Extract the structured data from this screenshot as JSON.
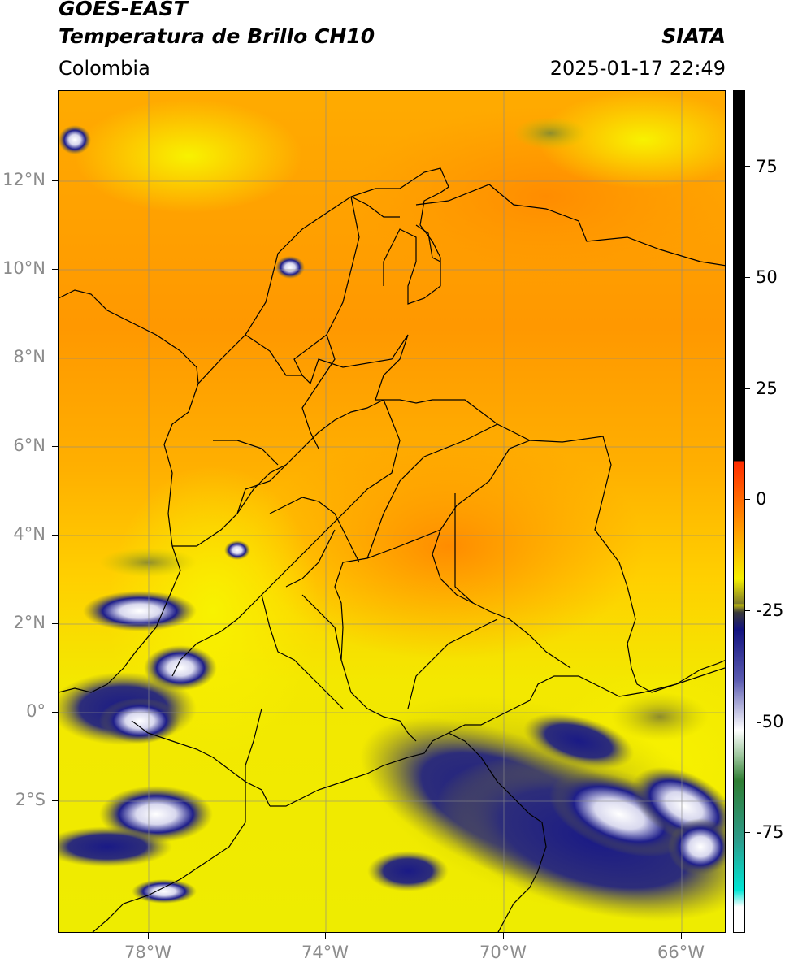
{
  "header": {
    "title_line1": "GOES-EAST",
    "title_line2": "Temperatura de Brillo CH10",
    "organization": "SIATA",
    "region": "Colombia",
    "timestamp": "2025-01-17 22:49"
  },
  "map": {
    "lat_labels": [
      "12°N",
      "10°N",
      "8°N",
      "6°N",
      "4°N",
      "2°N",
      "0°",
      "2°S"
    ],
    "lon_labels": [
      "78°W",
      "74°W",
      "70°W",
      "66°W"
    ]
  },
  "colorbar": {
    "tick_labels": [
      "75",
      "50",
      "25",
      "0",
      "-25",
      "-50",
      "-75"
    ],
    "colors": {
      "black": "#000000",
      "red": "#ff2a00",
      "orange": "#ff9900",
      "yellow": "#f5f000",
      "olive": "#7d7a2a",
      "navy": "#12127f",
      "white": "#ffffff",
      "green": "#2e7d32",
      "cyan": "#00e5d4"
    }
  }
}
